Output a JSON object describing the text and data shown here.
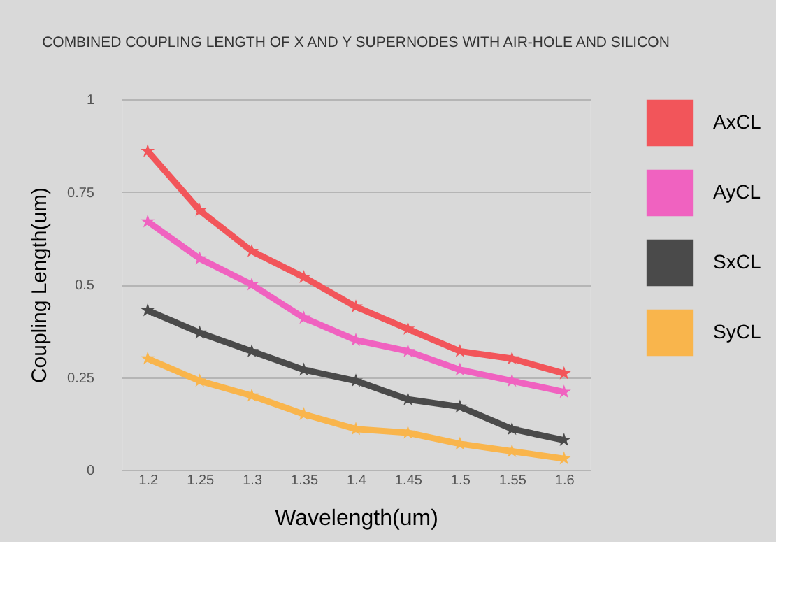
{
  "chart_data": {
    "type": "line",
    "title": "COMBINED COUPLING LENGTH OF X AND Y SUPERNODES WITH AIR-HOLE AND SILICON",
    "xlabel": "Wavelength(um)",
    "ylabel": "Coupling Length(um)",
    "categories": [
      "1.2",
      "1.25",
      "1.3",
      "1.35",
      "1.4",
      "1.45",
      "1.5",
      "1.55",
      "1.6"
    ],
    "series": [
      {
        "name": "AxCL",
        "color": "#f2555a",
        "values": [
          0.86,
          0.7,
          0.59,
          0.52,
          0.44,
          0.38,
          0.32,
          0.3,
          0.26
        ]
      },
      {
        "name": "AyCL",
        "color": "#f062c0",
        "values": [
          0.67,
          0.57,
          0.5,
          0.41,
          0.35,
          0.32,
          0.27,
          0.24,
          0.21
        ]
      },
      {
        "name": "SxCL",
        "color": "#4a4a4a",
        "values": [
          0.43,
          0.37,
          0.32,
          0.27,
          0.24,
          0.19,
          0.17,
          0.11,
          0.08
        ]
      },
      {
        "name": "SyCL",
        "color": "#f9b54c",
        "values": [
          0.3,
          0.24,
          0.2,
          0.15,
          0.11,
          0.1,
          0.07,
          0.05,
          0.03
        ]
      }
    ],
    "ylim": [
      0,
      1
    ],
    "yticks": [
      0,
      0.25,
      0.5,
      0.75,
      1
    ],
    "grid": "y",
    "legend": "right",
    "marker": "star",
    "line_style": "solid"
  }
}
